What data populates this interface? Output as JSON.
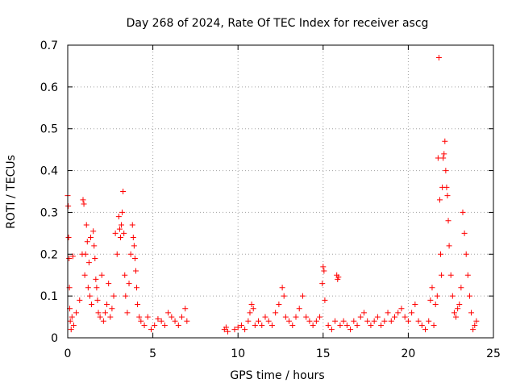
{
  "chart_data": {
    "type": "scatter",
    "title": "Day 268 of 2024, Rate Of TEC Index for receiver ascg",
    "xlabel": "GPS time / hours",
    "ylabel": "ROTI / TECUs",
    "xlim": [
      0,
      25
    ],
    "ylim": [
      0,
      0.7
    ],
    "xticks": [
      0,
      5,
      10,
      15,
      20,
      25
    ],
    "yticks": [
      0,
      0.1,
      0.2,
      0.3,
      0.4,
      0.5,
      0.6,
      0.7
    ],
    "xtick_labels": [
      "0",
      "5",
      "10",
      "15",
      "20",
      "25"
    ],
    "ytick_labels": [
      "0",
      "0.1",
      "0.2",
      "0.3",
      "0.4",
      "0.5",
      "0.6",
      "0.7"
    ],
    "grid": true,
    "marker": "+",
    "marker_color": "#ff0000",
    "series": [
      {
        "name": "ROTI",
        "x": [
          0.0,
          0.03,
          0.05,
          0.08,
          0.1,
          0.12,
          0.15,
          0.2,
          0.25,
          0.3,
          0.35,
          0.5,
          0.7,
          0.85,
          0.9,
          0.95,
          1.0,
          1.05,
          1.1,
          1.15,
          1.2,
          1.25,
          1.3,
          1.35,
          1.4,
          1.5,
          1.55,
          1.6,
          1.65,
          1.7,
          1.75,
          1.8,
          1.9,
          2.0,
          2.1,
          2.2,
          2.3,
          2.4,
          2.5,
          2.6,
          2.7,
          2.8,
          2.9,
          3.0,
          3.05,
          3.1,
          3.15,
          3.2,
          3.25,
          3.3,
          3.35,
          3.4,
          3.5,
          3.6,
          3.7,
          3.8,
          3.85,
          3.9,
          3.95,
          4.0,
          4.05,
          4.1,
          4.2,
          4.3,
          4.5,
          4.7,
          4.9,
          5.1,
          5.3,
          5.5,
          5.7,
          5.9,
          6.1,
          6.3,
          6.5,
          6.7,
          6.9,
          7.0,
          9.2,
          9.3,
          9.4,
          9.8,
          10.0,
          10.2,
          10.4,
          10.6,
          10.7,
          10.8,
          10.9,
          11.0,
          11.2,
          11.4,
          11.6,
          11.8,
          12.0,
          12.2,
          12.4,
          12.6,
          12.7,
          12.8,
          13.0,
          13.2,
          13.4,
          13.6,
          13.8,
          14.0,
          14.2,
          14.4,
          14.6,
          14.8,
          14.95,
          15.0,
          15.05,
          15.1,
          15.3,
          15.5,
          15.7,
          15.8,
          15.85,
          15.9,
          16.0,
          16.2,
          16.4,
          16.6,
          16.8,
          17.0,
          17.2,
          17.4,
          17.6,
          17.8,
          18.0,
          18.2,
          18.4,
          18.6,
          18.8,
          19.0,
          19.2,
          19.4,
          19.6,
          19.8,
          20.0,
          20.2,
          20.4,
          20.6,
          20.8,
          21.0,
          21.2,
          21.3,
          21.4,
          21.5,
          21.6,
          21.7,
          21.75,
          21.8,
          21.85,
          21.9,
          21.95,
          22.0,
          22.05,
          22.1,
          22.15,
          22.2,
          22.25,
          22.3,
          22.35,
          22.4,
          22.5,
          22.6,
          22.7,
          22.8,
          22.9,
          23.0,
          23.1,
          23.2,
          23.3,
          23.4,
          23.5,
          23.6,
          23.7,
          23.8,
          23.9,
          24.0
        ],
        "y": [
          0.34,
          0.315,
          0.24,
          0.19,
          0.12,
          0.07,
          0.04,
          0.02,
          0.05,
          0.195,
          0.03,
          0.06,
          0.09,
          0.2,
          0.33,
          0.32,
          0.15,
          0.2,
          0.27,
          0.23,
          0.12,
          0.18,
          0.1,
          0.24,
          0.08,
          0.255,
          0.22,
          0.19,
          0.14,
          0.12,
          0.09,
          0.06,
          0.05,
          0.15,
          0.04,
          0.06,
          0.08,
          0.13,
          0.05,
          0.07,
          0.1,
          0.25,
          0.2,
          0.29,
          0.26,
          0.24,
          0.27,
          0.3,
          0.35,
          0.25,
          0.15,
          0.1,
          0.06,
          0.13,
          0.2,
          0.27,
          0.24,
          0.22,
          0.19,
          0.16,
          0.12,
          0.08,
          0.05,
          0.04,
          0.03,
          0.05,
          0.02,
          0.03,
          0.045,
          0.04,
          0.03,
          0.06,
          0.05,
          0.04,
          0.03,
          0.05,
          0.07,
          0.04,
          0.02,
          0.025,
          0.015,
          0.02,
          0.025,
          0.03,
          0.02,
          0.04,
          0.06,
          0.08,
          0.07,
          0.03,
          0.04,
          0.03,
          0.05,
          0.04,
          0.03,
          0.06,
          0.08,
          0.12,
          0.1,
          0.05,
          0.04,
          0.03,
          0.05,
          0.07,
          0.1,
          0.05,
          0.04,
          0.03,
          0.04,
          0.05,
          0.13,
          0.17,
          0.16,
          0.09,
          0.03,
          0.02,
          0.04,
          0.15,
          0.14,
          0.145,
          0.03,
          0.04,
          0.03,
          0.02,
          0.04,
          0.03,
          0.05,
          0.06,
          0.04,
          0.03,
          0.04,
          0.05,
          0.03,
          0.04,
          0.06,
          0.04,
          0.05,
          0.06,
          0.07,
          0.05,
          0.04,
          0.06,
          0.08,
          0.04,
          0.03,
          0.02,
          0.04,
          0.09,
          0.12,
          0.03,
          0.08,
          0.1,
          0.43,
          0.67,
          0.33,
          0.2,
          0.15,
          0.36,
          0.43,
          0.44,
          0.47,
          0.4,
          0.36,
          0.34,
          0.28,
          0.22,
          0.15,
          0.1,
          0.06,
          0.05,
          0.07,
          0.08,
          0.12,
          0.3,
          0.25,
          0.2,
          0.15,
          0.1,
          0.06,
          0.02,
          0.03,
          0.04
        ]
      }
    ]
  }
}
